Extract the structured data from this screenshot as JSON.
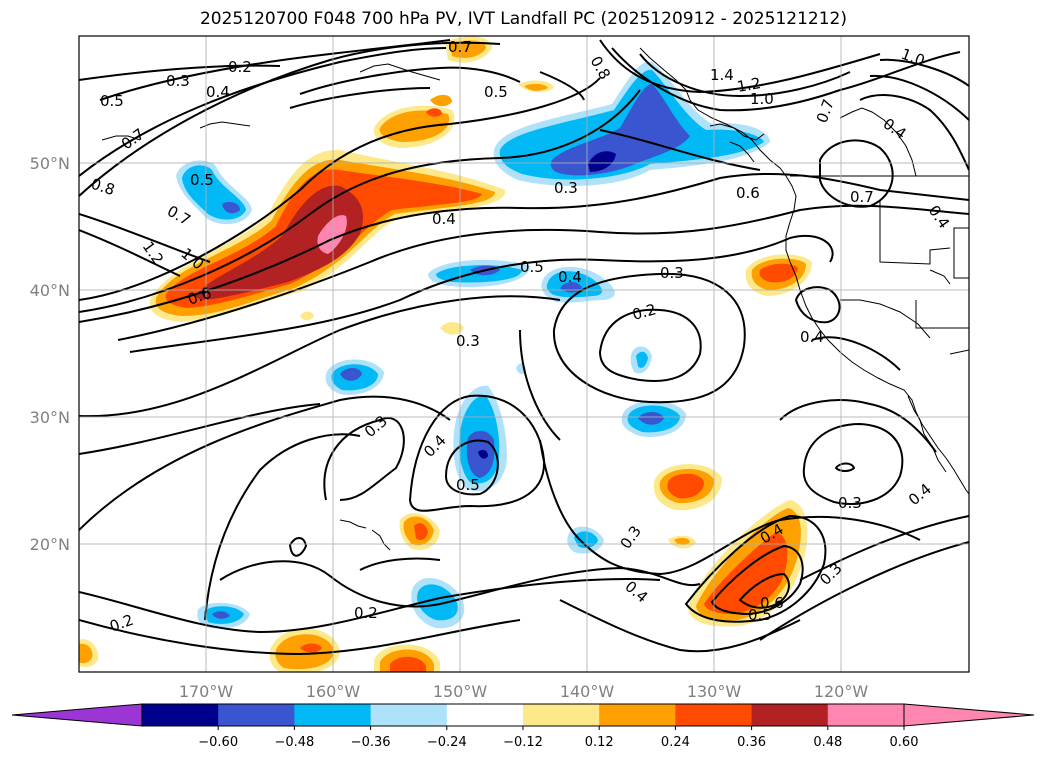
{
  "title": "2025120700 F048 700 hPa PV, IVT Landfall PC (2025120912 - 2025121212)",
  "map": {
    "lon_labels": [
      "170°W",
      "160°W",
      "150°W",
      "140°W",
      "130°W",
      "120°W"
    ],
    "lat_labels": [
      "50°N",
      "40°N",
      "30°N",
      "20°N"
    ],
    "contour_labels": [
      "0.2",
      "0.3",
      "0.4",
      "0.5",
      "0.6",
      "0.7",
      "0.8",
      "1.0",
      "1.2",
      "1.4"
    ]
  },
  "colorbar": {
    "ticks": [
      "−0.60",
      "−0.48",
      "−0.36",
      "−0.24",
      "−0.12",
      "0.12",
      "0.24",
      "0.36",
      "0.48",
      "0.60"
    ],
    "colors": [
      "#9b35d4",
      "#00008c",
      "#3a55d0",
      "#00b9f5",
      "#aee1fa",
      "#ffffff",
      "#fde98a",
      "#fda000",
      "#ff4a00",
      "#b22222",
      "#ff86b0",
      "#ff86b0"
    ]
  },
  "colors": {
    "pos1": "#fde98a",
    "pos2": "#fda000",
    "pos3": "#ff4a00",
    "pos4": "#b22222",
    "pos5": "#ff86b0",
    "neg1": "#aee1fa",
    "neg2": "#00b9f5",
    "neg3": "#3a55d0",
    "neg4": "#00008c"
  }
}
